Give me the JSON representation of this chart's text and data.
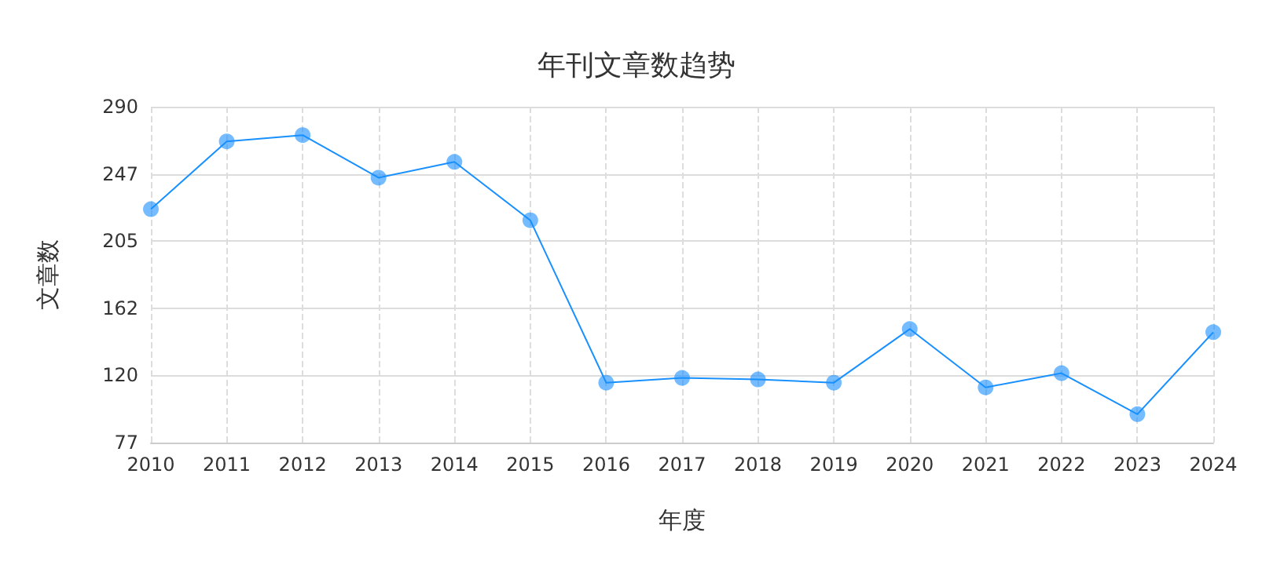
{
  "chart_data": {
    "type": "line",
    "title": "年刊文章数趋势",
    "xlabel": "年度",
    "ylabel": "文章数",
    "categories": [
      "2010",
      "2011",
      "2012",
      "2013",
      "2014",
      "2015",
      "2016",
      "2017",
      "2018",
      "2019",
      "2020",
      "2021",
      "2022",
      "2023",
      "2024"
    ],
    "series": [
      {
        "color": "#1890ff",
        "values": [
          225,
          268,
          272,
          245,
          255,
          218,
          115,
          118,
          117,
          115,
          149,
          112,
          121,
          95,
          147
        ]
      }
    ],
    "ylim": [
      77,
      290
    ],
    "yticks": [
      77,
      120,
      162,
      205,
      247,
      290
    ],
    "grid": true,
    "marker": "circle",
    "line_style": "solid"
  }
}
